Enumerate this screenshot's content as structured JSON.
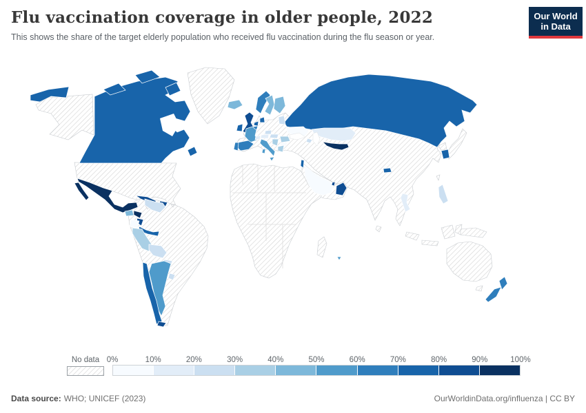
{
  "header": {
    "title": "Flu vaccination coverage in older people, 2022",
    "subtitle": "This shows the share of the target elderly population who received flu vaccination during the flu season or year.",
    "logo": {
      "line1": "Our World",
      "line2": "in Data",
      "bg": "#0c2d4f",
      "accent": "#e0393e"
    }
  },
  "legend": {
    "no_data_label": "No data",
    "ticks": [
      "0%",
      "10%",
      "20%",
      "30%",
      "40%",
      "50%",
      "60%",
      "70%",
      "80%",
      "90%",
      "100%"
    ],
    "bucket_colors": [
      "#f7fbff",
      "#e2edf8",
      "#cbdff1",
      "#a9cfe5",
      "#7db8da",
      "#4f9bcb",
      "#2f7ebc",
      "#1864aa",
      "#0f4d92",
      "#0a3161"
    ]
  },
  "footer": {
    "source_label": "Data source:",
    "source_value": "WHO; UNICEF (2023)",
    "credit": "OurWorldinData.org/influenza | CC BY"
  },
  "map": {
    "ocean_color": "#ffffff",
    "hatch_line_color": "#d6d6d6",
    "border_color": "#c7cbcf",
    "regions": [
      {
        "id": "greenland",
        "label": "Greenland",
        "bucket": -1
      },
      {
        "id": "usa",
        "label": "United States",
        "bucket": -1
      },
      {
        "id": "canada",
        "label": "Canada",
        "bucket": 7
      },
      {
        "id": "mexico",
        "label": "Mexico",
        "bucket": 9
      },
      {
        "id": "guatemala",
        "label": "Guatemala",
        "bucket": 4
      },
      {
        "id": "honduras",
        "label": "Honduras",
        "bucket": 9
      },
      {
        "id": "nicaragua",
        "label": "Nicaragua",
        "bucket": 8
      },
      {
        "id": "costa-rica-panama",
        "label": "Costa Rica / Panama",
        "bucket": 7
      },
      {
        "id": "cuba",
        "label": "Cuba",
        "bucket": 8
      },
      {
        "id": "hispaniola",
        "label": "Dominican Republic",
        "bucket": 8
      },
      {
        "id": "jamaica",
        "label": "Jamaica",
        "bucket": -1
      },
      {
        "id": "puerto-rico",
        "label": "Puerto Rico",
        "bucket": -1
      },
      {
        "id": "south-america",
        "label": "Colombia / Brazil / Guyanas",
        "bucket": -1
      },
      {
        "id": "venezuela",
        "label": "Venezuela",
        "bucket": 2
      },
      {
        "id": "ecuador",
        "label": "Ecuador",
        "bucket": 0
      },
      {
        "id": "peru",
        "label": "Peru",
        "bucket": 3
      },
      {
        "id": "bolivia",
        "label": "Bolivia",
        "bucket": 2
      },
      {
        "id": "paraguay",
        "label": "Paraguay",
        "bucket": 2
      },
      {
        "id": "chile",
        "label": "Chile",
        "bucket": 7
      },
      {
        "id": "argentina",
        "label": "Argentina",
        "bucket": 5
      },
      {
        "id": "uruguay",
        "label": "Uruguay",
        "bucket": 2
      },
      {
        "id": "tierra-del-fuego",
        "label": "Southern Chile",
        "bucket": 8
      },
      {
        "id": "iceland",
        "label": "Iceland",
        "bucket": 4
      },
      {
        "id": "uk",
        "label": "United Kingdom",
        "bucket": 8
      },
      {
        "id": "ireland",
        "label": "Ireland",
        "bucket": 7
      },
      {
        "id": "norway",
        "label": "Norway",
        "bucket": 6
      },
      {
        "id": "sweden",
        "label": "Sweden",
        "bucket": 4
      },
      {
        "id": "finland",
        "label": "Finland",
        "bucket": 4
      },
      {
        "id": "denmark",
        "label": "Denmark",
        "bucket": 7
      },
      {
        "id": "netherlands",
        "label": "Netherlands",
        "bucket": 7
      },
      {
        "id": "belgium",
        "label": "Belgium",
        "bucket": 6
      },
      {
        "id": "france",
        "label": "France",
        "bucket": 5
      },
      {
        "id": "spain",
        "label": "Spain",
        "bucket": 6
      },
      {
        "id": "portugal",
        "label": "Portugal",
        "bucket": 6
      },
      {
        "id": "italy",
        "label": "Italy",
        "bucket": 5
      },
      {
        "id": "switzerland",
        "label": "Switzerland",
        "bucket": 1
      },
      {
        "id": "austria",
        "label": "Austria",
        "bucket": 1
      },
      {
        "id": "czechia",
        "label": "Czechia",
        "bucket": 2
      },
      {
        "id": "slovakia-hungary",
        "label": "Slovakia / Hungary",
        "bucket": 2
      },
      {
        "id": "romania",
        "label": "Romania",
        "bucket": 3
      },
      {
        "id": "balkans",
        "label": "Croatia / Serbia",
        "bucket": 3
      },
      {
        "id": "greece",
        "label": "Greece",
        "bucket": 3
      },
      {
        "id": "bulgaria",
        "label": "Bulgaria",
        "bucket": 0
      },
      {
        "id": "ukraine",
        "label": "Ukraine",
        "bucket": 0
      },
      {
        "id": "baltics",
        "label": "Baltic states",
        "bucket": 2
      },
      {
        "id": "eurasia",
        "label": "Other Eurasia (no data)",
        "bucket": -1
      },
      {
        "id": "russia",
        "label": "Russia",
        "bucket": 7
      },
      {
        "id": "kazakhstan",
        "label": "Kazakhstan",
        "bucket": 1
      },
      {
        "id": "uzbekistan",
        "label": "Uzbekistan",
        "bucket": 9
      },
      {
        "id": "azerbaijan",
        "label": "Azerbaijan",
        "bucket": 2
      },
      {
        "id": "arabia",
        "label": "Yemen / Jordan / Iraq",
        "bucket": -1
      },
      {
        "id": "saudi-arabia",
        "label": "Saudi Arabia",
        "bucket": 0
      },
      {
        "id": "oman",
        "label": "Oman",
        "bucket": 8
      },
      {
        "id": "qatar",
        "label": "Qatar",
        "bucket": 8
      },
      {
        "id": "israel",
        "label": "Israel",
        "bucket": 7
      },
      {
        "id": "africa",
        "label": "Africa (no data)",
        "bucket": -1
      },
      {
        "id": "madagascar",
        "label": "Madagascar",
        "bucket": -1
      },
      {
        "id": "mauritius",
        "label": "Mauritius",
        "bucket": 5
      },
      {
        "id": "japan",
        "label": "Japan",
        "bucket": -1
      },
      {
        "id": "north-korea",
        "label": "North Korea",
        "bucket": -1
      },
      {
        "id": "south-korea",
        "label": "South Korea",
        "bucket": 7
      },
      {
        "id": "taiwan",
        "label": "Taiwan",
        "bucket": -1
      },
      {
        "id": "philippines",
        "label": "Philippines",
        "bucket": 2
      },
      {
        "id": "bhutan",
        "label": "Bhutan",
        "bucket": 7
      },
      {
        "id": "thailand",
        "label": "Thailand",
        "bucket": 1
      },
      {
        "id": "sri-lanka",
        "label": "Sri Lanka",
        "bucket": -1
      },
      {
        "id": "indonesia",
        "label": "Indonesia",
        "bucket": -1
      },
      {
        "id": "png",
        "label": "Papua New Guinea",
        "bucket": -1
      },
      {
        "id": "australia",
        "label": "Australia",
        "bucket": -1
      },
      {
        "id": "new-zealand",
        "label": "New Zealand",
        "bucket": 6
      }
    ]
  },
  "chart_data": {
    "type": "heatmap",
    "subtype": "choropleth world map",
    "title": "Flu vaccination coverage in older people, 2022",
    "subtitle": "Share of the target elderly population who received flu vaccination during the flu season or year",
    "unit": "% of target elderly population",
    "year": 2022,
    "legend_position": "bottom",
    "buckets": [
      "0-10%",
      "10-20%",
      "20-30%",
      "30-40%",
      "40-50%",
      "50-60%",
      "60-70%",
      "70-80%",
      "80-90%",
      "90-100%"
    ],
    "bucket_colors": [
      "#f7fbff",
      "#e2edf8",
      "#cbdff1",
      "#a9cfe5",
      "#7db8da",
      "#4f9bcb",
      "#2f7ebc",
      "#1864aa",
      "#0f4d92",
      "#0a3161"
    ],
    "values": {
      "Canada": "70-80%",
      "Mexico": "90-100%",
      "Guatemala": "40-50%",
      "Honduras": "90-100%",
      "Nicaragua": "80-90%",
      "Costa Rica / Panama": "70-80%",
      "Cuba": "80-90%",
      "Dominican Republic": "80-90%",
      "Venezuela": "20-30%",
      "Ecuador": "0-10%",
      "Peru": "30-40%",
      "Bolivia": "20-30%",
      "Paraguay": "20-30%",
      "Chile": "70-80%",
      "Argentina": "50-60%",
      "Uruguay": "20-30%",
      "Iceland": "40-50%",
      "United Kingdom": "80-90%",
      "Ireland": "70-80%",
      "Norway": "60-70%",
      "Sweden": "40-50%",
      "Finland": "40-50%",
      "Denmark": "70-80%",
      "Netherlands": "70-80%",
      "Belgium": "60-70%",
      "France": "50-60%",
      "Spain": "60-70%",
      "Portugal": "60-70%",
      "Italy": "50-60%",
      "Switzerland": "10-20%",
      "Austria": "10-20%",
      "Czechia": "20-30%",
      "Slovakia / Hungary": "20-30%",
      "Romania": "30-40%",
      "Croatia / Serbia": "30-40%",
      "Greece": "30-40%",
      "Bulgaria": "0-10%",
      "Ukraine": "0-10%",
      "Baltic states": "10-20%",
      "Russia": "70-80%",
      "Kazakhstan": "10-20%",
      "Uzbekistan": "90-100%",
      "Azerbaijan": "20-30%",
      "Israel": "70-80%",
      "Saudi Arabia": "0-10%",
      "Oman": "80-90%",
      "Qatar": "80-90%",
      "South Korea": "70-80%",
      "Bhutan": "70-80%",
      "Thailand": "10-20%",
      "Philippines": "20-30%",
      "New Zealand": "60-70%",
      "Mauritius": "50-60%"
    },
    "no_data": [
      "United States",
      "Greenland",
      "Colombia",
      "Brazil",
      "Germany",
      "Poland",
      "Belarus",
      "Turkey",
      "China",
      "Mongolia",
      "India",
      "Japan",
      "Iran",
      "Indonesia",
      "Papua New Guinea",
      "Australia",
      "Madagascar",
      "most of Africa"
    ]
  }
}
